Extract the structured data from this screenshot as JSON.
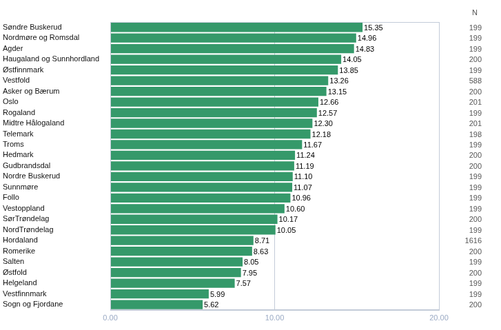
{
  "chart_data": {
    "type": "bar",
    "orientation": "horizontal",
    "categories": [
      "Søndre Buskerud",
      "Nordmøre og Romsdal",
      "Agder",
      "Haugaland og Sunnhordland",
      "Østfinnmark",
      "Vestfold",
      "Asker og Bærum",
      "Oslo",
      "Rogaland",
      "Midtre Hålogaland",
      "Telemark",
      "Troms",
      "Hedmark",
      "Gudbrandsdal",
      "Nordre Buskerud",
      "Sunnmøre",
      "Follo",
      "Vestoppland",
      "SørTrøndelag",
      "NordTrøndelag",
      "Hordaland",
      "Romerike",
      "Salten",
      "Østfold",
      "Helgeland",
      "Vestfinnmark",
      "Sogn og Fjordane"
    ],
    "values": [
      15.35,
      14.96,
      14.83,
      14.05,
      13.85,
      13.26,
      13.15,
      12.66,
      12.57,
      12.3,
      12.18,
      11.67,
      11.24,
      11.19,
      11.1,
      11.07,
      10.96,
      10.6,
      10.17,
      10.05,
      8.71,
      8.63,
      8.05,
      7.95,
      7.57,
      5.99,
      5.62
    ],
    "value_labels": [
      "15.35",
      "14.96",
      "14.83",
      "14.05",
      "13.85",
      "13.26",
      "13.15",
      "12.66",
      "12.57",
      "12.30",
      "12.18",
      "11.67",
      "11.24",
      "11.19",
      "11.10",
      "11.07",
      "10.96",
      "10.60",
      "10.17",
      "10.05",
      "8.71",
      "8.63",
      "8.05",
      "7.95",
      "7.57",
      "5.99",
      "5.62"
    ],
    "n_label": "N",
    "n": [
      199,
      199,
      199,
      200,
      199,
      588,
      200,
      201,
      199,
      201,
      198,
      199,
      200,
      200,
      199,
      199,
      199,
      199,
      200,
      199,
      1616,
      200,
      199,
      200,
      199,
      199,
      200
    ],
    "color": "#35996a",
    "xlim": [
      0,
      20
    ],
    "xticks": [
      {
        "value": 0,
        "label": "0.00"
      },
      {
        "value": 10,
        "label": "10.00"
      },
      {
        "value": 20,
        "label": "20.00"
      }
    ],
    "grid": true,
    "data_labels": true
  }
}
